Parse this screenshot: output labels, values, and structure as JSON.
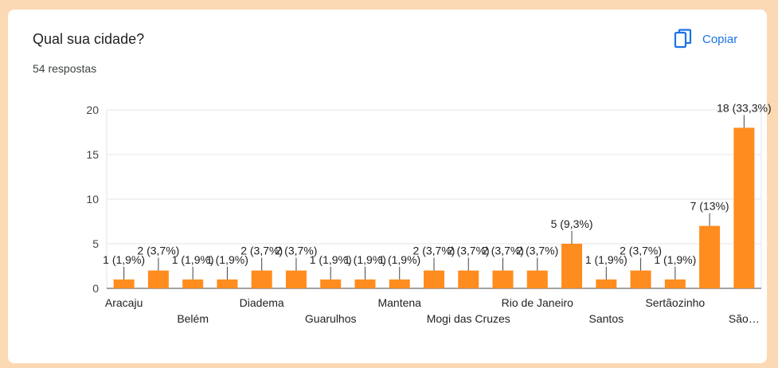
{
  "card": {
    "title": "Qual sua cidade?",
    "subtitle": "54 respostas",
    "copy_label": "Copiar",
    "copy_icon": "copy-icon"
  },
  "colors": {
    "bar": "#ff8c1e",
    "accent": "#1a73e8",
    "background": "#fcd9b5"
  },
  "chart_data": {
    "type": "bar",
    "categories": [
      "Aracaju",
      "",
      "Belém",
      "",
      "Diadema",
      "",
      "Guarulhos",
      "",
      "Mantena",
      "",
      "Mogi das Cruzes",
      "",
      "Rio de Janeiro",
      "",
      "Santos",
      "",
      "Sertãozinho",
      "",
      "São…"
    ],
    "values": [
      1,
      2,
      1,
      1,
      2,
      2,
      1,
      1,
      1,
      2,
      2,
      2,
      2,
      5,
      1,
      2,
      1,
      7,
      18
    ],
    "data_labels": [
      "1 (1,9%)",
      "2 (3,7%)",
      "1 (1,9%)",
      "1 (1,9%)",
      "2 (3,7%)",
      "2 (3,7%)",
      "1 (1,9%)",
      "1 (1,9%)",
      "1 (1,9%)",
      "2 (3,7%)",
      "2 (3,7%)",
      "2 (3,7%)",
      "2 (3,7%)",
      "5 (9,3%)",
      "1 (1,9%)",
      "2 (3,7%)",
      "1 (1,9%)",
      "7 (13%)",
      "18 (33,3%)"
    ],
    "yticks": [
      0,
      5,
      10,
      15,
      20
    ],
    "ylim": [
      0,
      20
    ],
    "grid": true,
    "legend": "none"
  }
}
